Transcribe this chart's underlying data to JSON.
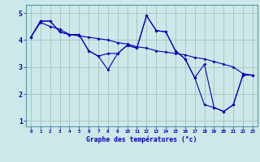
{
  "xlabel": "Graphe des températures (°c)",
  "background_color": "#cce8e8",
  "line_color": "#0000bb",
  "x_values": [
    0,
    1,
    2,
    3,
    4,
    5,
    6,
    7,
    8,
    9,
    10,
    11,
    12,
    13,
    14,
    15,
    16,
    17,
    18,
    19,
    20,
    21,
    22,
    23
  ],
  "series1": [
    4.1,
    4.7,
    4.7,
    4.3,
    4.2,
    4.2,
    3.6,
    3.4,
    2.9,
    3.5,
    3.8,
    3.7,
    4.9,
    4.35,
    4.3,
    3.6,
    3.3,
    2.6,
    1.6,
    1.5,
    1.35,
    1.6,
    2.7,
    2.7
  ],
  "series2": [
    4.1,
    4.7,
    4.7,
    4.3,
    4.2,
    4.2,
    3.6,
    3.4,
    3.5,
    3.5,
    3.8,
    3.7,
    4.9,
    4.35,
    4.3,
    3.6,
    3.3,
    2.6,
    3.1,
    1.5,
    1.35,
    1.6,
    2.7,
    2.7
  ],
  "series_trend": [
    4.1,
    4.65,
    4.5,
    4.4,
    4.2,
    4.15,
    4.1,
    4.05,
    4.0,
    3.9,
    3.85,
    3.75,
    3.7,
    3.6,
    3.55,
    3.5,
    3.45,
    3.35,
    3.3,
    3.2,
    3.1,
    3.0,
    2.75,
    2.7
  ],
  "ylim": [
    0.8,
    5.3
  ],
  "xlim": [
    -0.5,
    23.5
  ],
  "yticks": [
    1,
    2,
    3,
    4,
    5
  ],
  "xticks": [
    0,
    1,
    2,
    3,
    4,
    5,
    6,
    7,
    8,
    9,
    10,
    11,
    12,
    13,
    14,
    15,
    16,
    17,
    18,
    19,
    20,
    21,
    22,
    23
  ],
  "grid_color": "#99bbbb",
  "tick_color": "#0000bb",
  "label_color": "#0000bb",
  "markersize": 2.0,
  "linewidth": 0.8
}
